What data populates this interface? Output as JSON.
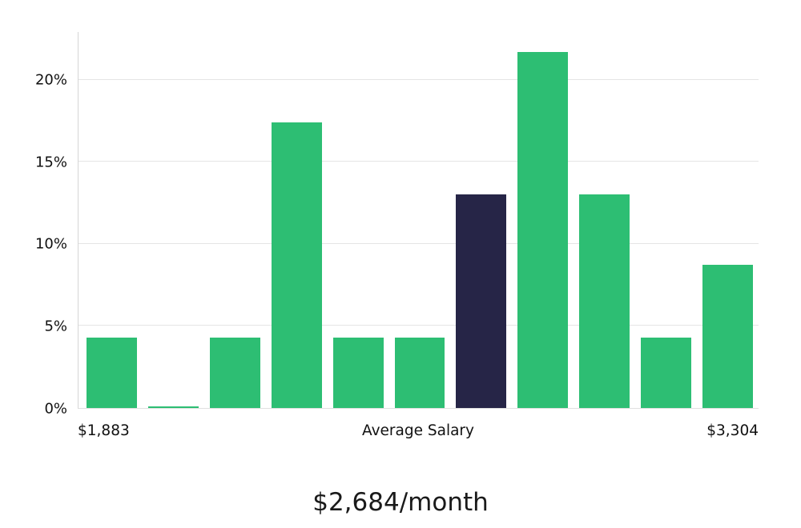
{
  "chart_data": {
    "type": "bar",
    "title": "$2,684/month",
    "values": [
      4.3,
      0.1,
      4.3,
      17.4,
      4.3,
      4.3,
      13.0,
      21.7,
      13.0,
      4.3,
      8.7
    ],
    "highlight_index": 6,
    "bar_color": "#2dbe73",
    "highlight_color": "#262547",
    "yticks": [
      0,
      5,
      10,
      15,
      20
    ],
    "ytick_suffix": "%",
    "ylim": [
      0,
      22.9
    ],
    "grid": true,
    "legend": "none",
    "x_axis_labels": {
      "left": "$1,883",
      "center": "Average Salary",
      "right": "$3,304"
    }
  }
}
